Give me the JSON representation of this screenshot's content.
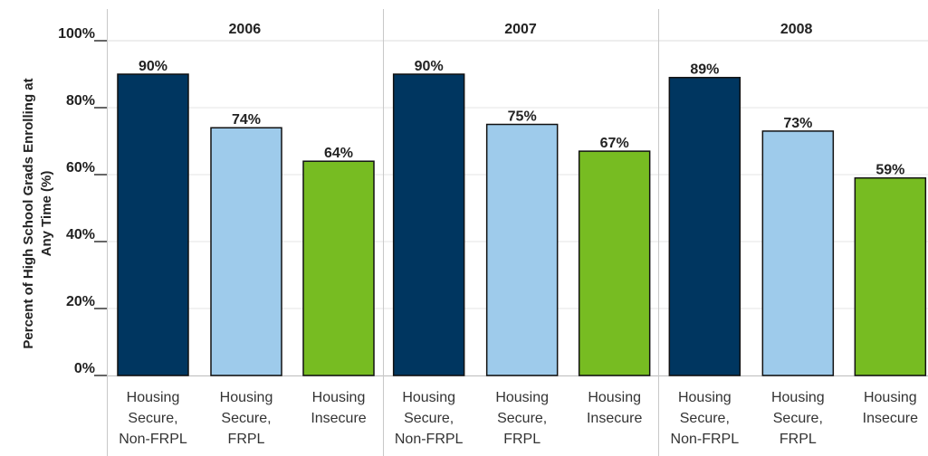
{
  "chart_data": {
    "type": "bar",
    "ylabel": "Percent of High School Grads Enrolling at Any Time (%)",
    "ylim": [
      0,
      100
    ],
    "yticks": [
      "0%",
      "20%",
      "40%",
      "60%",
      "80%",
      "100%"
    ],
    "ytick_values": [
      0,
      20,
      40,
      60,
      80,
      100
    ],
    "grid": true,
    "categories": [
      [
        "Housing",
        "Secure,",
        "Non-FRPL"
      ],
      [
        "Housing",
        "Secure,",
        "FRPL"
      ],
      [
        "Housing",
        "Insecure"
      ]
    ],
    "colors": [
      "#003660",
      "#9ecbeb",
      "#77bc22"
    ],
    "panels": [
      {
        "title": "2006",
        "values": [
          90,
          74,
          64
        ],
        "labels": [
          "90%",
          "74%",
          "64%"
        ]
      },
      {
        "title": "2007",
        "values": [
          90,
          75,
          67
        ],
        "labels": [
          "90%",
          "75%",
          "67%"
        ]
      },
      {
        "title": "2008",
        "values": [
          89,
          73,
          59
        ],
        "labels": [
          "89%",
          "73%",
          "59%"
        ]
      }
    ]
  }
}
